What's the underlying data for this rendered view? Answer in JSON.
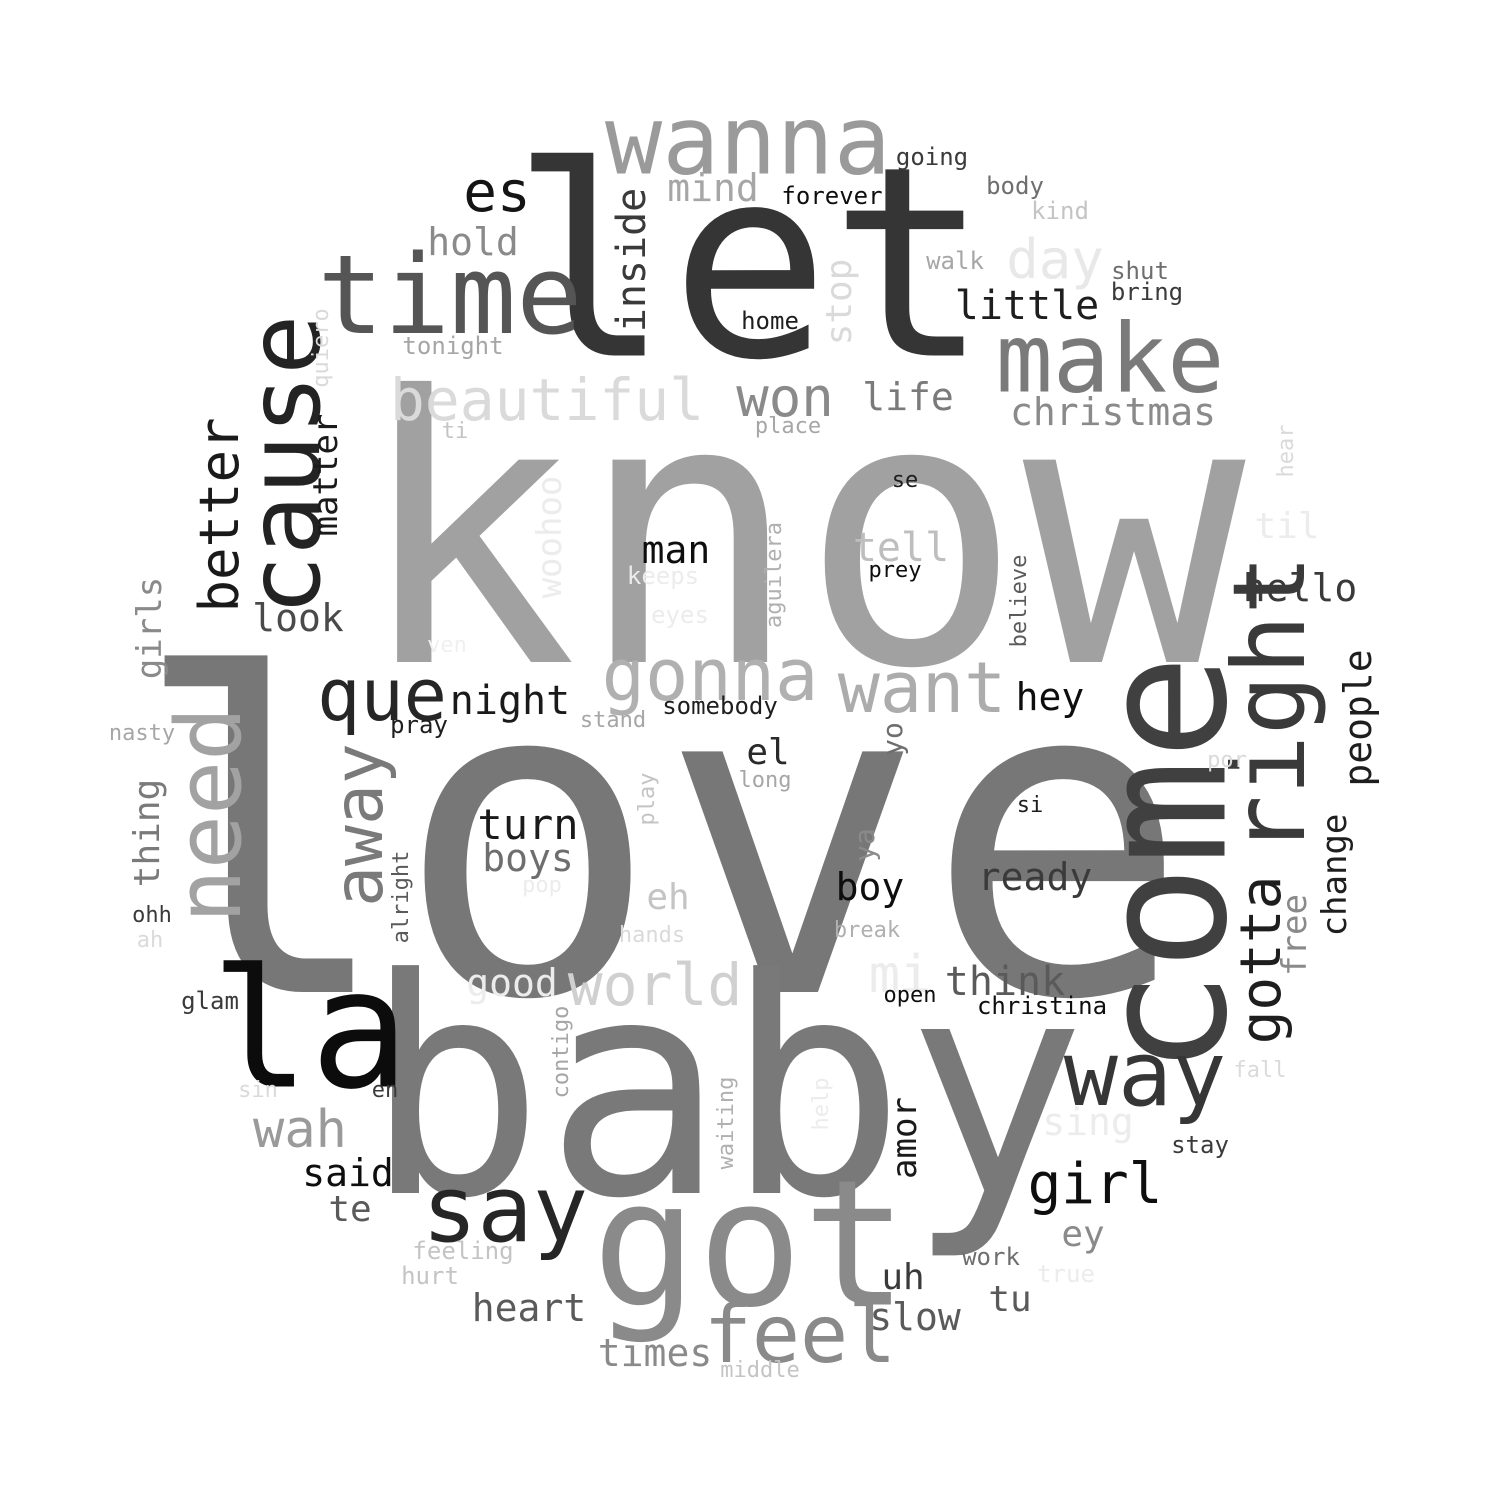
{
  "words": [
    {
      "text": "love",
      "color": "#777777",
      "vertical": false
    },
    {
      "text": "know",
      "color": "#a1a1a1",
      "vertical": false
    },
    {
      "text": "baby",
      "color": "#797979",
      "vertical": false
    },
    {
      "text": "let",
      "color": "#353535",
      "vertical": false
    },
    {
      "text": "come",
      "color": "#404040",
      "vertical": true
    },
    {
      "text": "got",
      "color": "#8a8a8a",
      "vertical": false
    },
    {
      "text": "la",
      "color": "#0c0c0c",
      "vertical": false
    },
    {
      "text": "time",
      "color": "#555555",
      "vertical": false
    },
    {
      "text": "wanna",
      "color": "#9a9a9a",
      "vertical": false
    },
    {
      "text": "cause",
      "color": "#232323",
      "vertical": true
    },
    {
      "text": "make",
      "color": "#7a7a7a",
      "vertical": false
    },
    {
      "text": "right",
      "color": "#3a3a3a",
      "vertical": true
    },
    {
      "text": "need",
      "color": "#a2a2a2",
      "vertical": true
    },
    {
      "text": "say",
      "color": "#262626",
      "vertical": false
    },
    {
      "text": "way",
      "color": "#363636",
      "vertical": false
    },
    {
      "text": "feel",
      "color": "#8a8a8a",
      "vertical": false
    },
    {
      "text": "gonna",
      "color": "#b0b0b0",
      "vertical": false
    },
    {
      "text": "want",
      "color": "#acacac",
      "vertical": false
    },
    {
      "text": "que",
      "color": "#262626",
      "vertical": false
    },
    {
      "text": "away",
      "color": "#7a7a7a",
      "vertical": true
    },
    {
      "text": "beautiful",
      "color": "#dadada",
      "vertical": false
    },
    {
      "text": "world",
      "color": "#d0d0d0",
      "vertical": false
    },
    {
      "text": "won",
      "color": "#8a8a8a",
      "vertical": false
    },
    {
      "text": "day",
      "color": "#e8e8e8",
      "vertical": false
    },
    {
      "text": "gotta",
      "color": "#1e1e1e",
      "vertical": true
    },
    {
      "text": "better",
      "color": "#1a1a1a",
      "vertical": true
    },
    {
      "text": "es",
      "color": "#141414",
      "vertical": false
    },
    {
      "text": "girl",
      "color": "#0e0e0e",
      "vertical": false
    },
    {
      "text": "wah",
      "color": "#9a9a9a",
      "vertical": false
    },
    {
      "text": "mi",
      "color": "#ececec",
      "vertical": false
    },
    {
      "text": "turn",
      "color": "#1a1a1a",
      "vertical": false
    },
    {
      "text": "little",
      "color": "#1e1e1e",
      "vertical": false
    },
    {
      "text": "christmas",
      "color": "#8a8a8a",
      "vertical": false
    },
    {
      "text": "hello",
      "color": "#3a3a3a",
      "vertical": false
    },
    {
      "text": "ready",
      "color": "#3a3a3a",
      "vertical": false
    },
    {
      "text": "think",
      "color": "#5a5a5a",
      "vertical": false
    },
    {
      "text": "night",
      "color": "#1a1a1a",
      "vertical": false
    },
    {
      "text": "inside",
      "color": "#3a3a3a",
      "vertical": true
    },
    {
      "text": "hold",
      "color": "#8a8a8a",
      "vertical": false
    },
    {
      "text": "mind",
      "color": "#a6a6a6",
      "vertical": false
    },
    {
      "text": "people",
      "color": "#1e1e1e",
      "vertical": true
    },
    {
      "text": "man",
      "color": "#0e0e0e",
      "vertical": false
    },
    {
      "text": "boys",
      "color": "#6e6e6e",
      "vertical": false
    },
    {
      "text": "tell",
      "color": "#bebebe",
      "vertical": false
    },
    {
      "text": "life",
      "color": "#7a7a7a",
      "vertical": false
    },
    {
      "text": "look",
      "color": "#4a4a4a",
      "vertical": false
    },
    {
      "text": "hey",
      "color": "#0e0e0e",
      "vertical": false
    },
    {
      "text": "boy",
      "color": "#0e0e0e",
      "vertical": false
    },
    {
      "text": "said",
      "color": "#0e0e0e",
      "vertical": false
    },
    {
      "text": "heart",
      "color": "#5a5a5a",
      "vertical": false
    },
    {
      "text": "slow",
      "color": "#5a5a5a",
      "vertical": false
    },
    {
      "text": "times",
      "color": "#8a8a8a",
      "vertical": false
    },
    {
      "text": "matter",
      "color": "#1a1a1a",
      "vertical": true
    },
    {
      "text": "stop",
      "color": "#dadada",
      "vertical": true
    },
    {
      "text": "change",
      "color": "#1e1e1e",
      "vertical": true
    },
    {
      "text": "free",
      "color": "#8a8a8a",
      "vertical": true
    },
    {
      "text": "girls",
      "color": "#8a8a8a",
      "vertical": true
    },
    {
      "text": "thing",
      "color": "#7a7a7a",
      "vertical": true
    },
    {
      "text": "amor",
      "color": "#1a1a1a",
      "vertical": true
    },
    {
      "text": "sing",
      "color": "#ececec",
      "vertical": false
    },
    {
      "text": "eh",
      "color": "#c4c4c4",
      "vertical": false
    },
    {
      "text": "el",
      "color": "#2a2a2a",
      "vertical": false
    },
    {
      "text": "uh",
      "color": "#3a3a3a",
      "vertical": false
    },
    {
      "text": "tu",
      "color": "#5a5a5a",
      "vertical": false
    },
    {
      "text": "ey",
      "color": "#8a8a8a",
      "vertical": false
    },
    {
      "text": "te",
      "color": "#5a5a5a",
      "vertical": false
    },
    {
      "text": "til",
      "color": "#ececec",
      "vertical": false
    },
    {
      "text": "good",
      "color": "#ececec",
      "vertical": false
    },
    {
      "text": "woohoo",
      "color": "#ececec",
      "vertical": true
    },
    {
      "text": "yo",
      "color": "#6e6e6e",
      "vertical": true
    },
    {
      "text": "ya",
      "color": "#8a8a8a",
      "vertical": true
    },
    {
      "text": "going",
      "color": "#3a3a3a",
      "vertical": false
    },
    {
      "text": "forever",
      "color": "#0e0e0e",
      "vertical": false
    },
    {
      "text": "body",
      "color": "#6e6e6e",
      "vertical": false
    },
    {
      "text": "kind",
      "color": "#c4c4c4",
      "vertical": false
    },
    {
      "text": "walk",
      "color": "#a6a6a6",
      "vertical": false
    },
    {
      "text": "shut",
      "color": "#6e6e6e",
      "vertical": false
    },
    {
      "text": "bring",
      "color": "#3a3a3a",
      "vertical": false
    },
    {
      "text": "home",
      "color": "#1e1e1e",
      "vertical": false
    },
    {
      "text": "tonight",
      "color": "#a6a6a6",
      "vertical": false
    },
    {
      "text": "quiero",
      "color": "#dadada",
      "vertical": true
    },
    {
      "text": "ti",
      "color": "#c4c4c4",
      "vertical": false
    },
    {
      "text": "place",
      "color": "#a6a6a6",
      "vertical": false
    },
    {
      "text": "se",
      "color": "#1e1e1e",
      "vertical": false
    },
    {
      "text": "hear",
      "color": "#dadada",
      "vertical": true
    },
    {
      "text": "prey",
      "color": "#0e0e0e",
      "vertical": false
    },
    {
      "text": "keeps",
      "color": "#ececec",
      "vertical": false
    },
    {
      "text": "aguilera",
      "color": "#b0b0b0",
      "vertical": true
    },
    {
      "text": "eyes",
      "color": "#ececec",
      "vertical": false
    },
    {
      "text": "believe",
      "color": "#5a5a5a",
      "vertical": true
    },
    {
      "text": "ven",
      "color": "#f0f0f0",
      "vertical": false
    },
    {
      "text": "nasty",
      "color": "#a6a6a6",
      "vertical": false
    },
    {
      "text": "pray",
      "color": "#1e1e1e",
      "vertical": false
    },
    {
      "text": "stand",
      "color": "#a6a6a6",
      "vertical": false
    },
    {
      "text": "somebody",
      "color": "#1e1e1e",
      "vertical": false
    },
    {
      "text": "long",
      "color": "#a6a6a6",
      "vertical": false
    },
    {
      "text": "por",
      "color": "#dadada",
      "vertical": false
    },
    {
      "text": "si",
      "color": "#1e1e1e",
      "vertical": false
    },
    {
      "text": "play",
      "color": "#c4c4c4",
      "vertical": true
    },
    {
      "text": "ohh",
      "color": "#3a3a3a",
      "vertical": false
    },
    {
      "text": "ah",
      "color": "#dadada",
      "vertical": false
    },
    {
      "text": "alright",
      "color": "#5a5a5a",
      "vertical": true
    },
    {
      "text": "pop",
      "color": "#ececec",
      "vertical": false
    },
    {
      "text": "hands",
      "color": "#dadada",
      "vertical": false
    },
    {
      "text": "break",
      "color": "#b0b0b0",
      "vertical": false
    },
    {
      "text": "open",
      "color": "#0e0e0e",
      "vertical": false
    },
    {
      "text": "christina",
      "color": "#0e0e0e",
      "vertical": false
    },
    {
      "text": "glam",
      "color": "#3a3a3a",
      "vertical": false
    },
    {
      "text": "contigo",
      "color": "#a6a6a6",
      "vertical": true
    },
    {
      "text": "sin",
      "color": "#dadada",
      "vertical": false
    },
    {
      "text": "en",
      "color": "#3a3a3a",
      "vertical": false
    },
    {
      "text": "fall",
      "color": "#dadada",
      "vertical": false
    },
    {
      "text": "waiting",
      "color": "#b0b0b0",
      "vertical": true
    },
    {
      "text": "help",
      "color": "#ececec",
      "vertical": true
    },
    {
      "text": "stay",
      "color": "#3a3a3a",
      "vertical": false
    },
    {
      "text": "feeling",
      "color": "#c4c4c4",
      "vertical": false
    },
    {
      "text": "hurt",
      "color": "#c4c4c4",
      "vertical": false
    },
    {
      "text": "work",
      "color": "#6e6e6e",
      "vertical": false
    },
    {
      "text": "true",
      "color": "#ececec",
      "vertical": false
    },
    {
      "text": "middle",
      "color": "#c4c4c4",
      "vertical": false
    }
  ]
}
